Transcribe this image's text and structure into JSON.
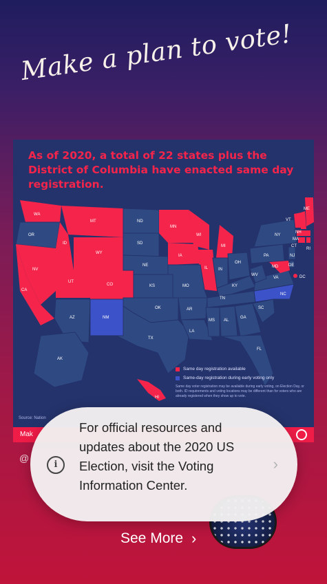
{
  "headline": "Make a plan to vote!",
  "card": {
    "title": "As of 2020, a total of 22 states plus the District of Columbia have enacted same day registration.",
    "legend": {
      "same_day": "Same day registration available",
      "early_voting": "Same-day registration during early voting only",
      "note": "Same day voter registration may be available during early voting, on Election Day, or both. ID requirements and voting locations may be different than for voters who are already registered when they show up to vote."
    },
    "source": "Source: Nation",
    "footer_brand": "Mak",
    "colors": {
      "card_bg": "#24336c",
      "same_day": "#f5244a",
      "early": "#3b52c8",
      "state": "#2f4a82"
    }
  },
  "state_labels": [
    "WA",
    "OR",
    "MT",
    "ID",
    "WY",
    "NV",
    "CA",
    "UT",
    "CO",
    "AZ",
    "NM",
    "ND",
    "SD",
    "NE",
    "KS",
    "OK",
    "TX",
    "MN",
    "IA",
    "MO",
    "AR",
    "LA",
    "WI",
    "IL",
    "MI",
    "IN",
    "OH",
    "KY",
    "TN",
    "MS",
    "AL",
    "GA",
    "FL",
    "SC",
    "NC",
    "VA",
    "WV",
    "PA",
    "NY",
    "VT",
    "NH",
    "ME",
    "MA",
    "CT",
    "RI",
    "NJ",
    "DE",
    "MD",
    "DC",
    "AK",
    "HI"
  ],
  "handle": "@",
  "notice": {
    "message": "For official resources and updates about the 2020 US Election, visit the Voting Information Center.",
    "info_icon": "i",
    "chevron": "›"
  },
  "see_more": {
    "label": "See More",
    "chevron": "›"
  }
}
